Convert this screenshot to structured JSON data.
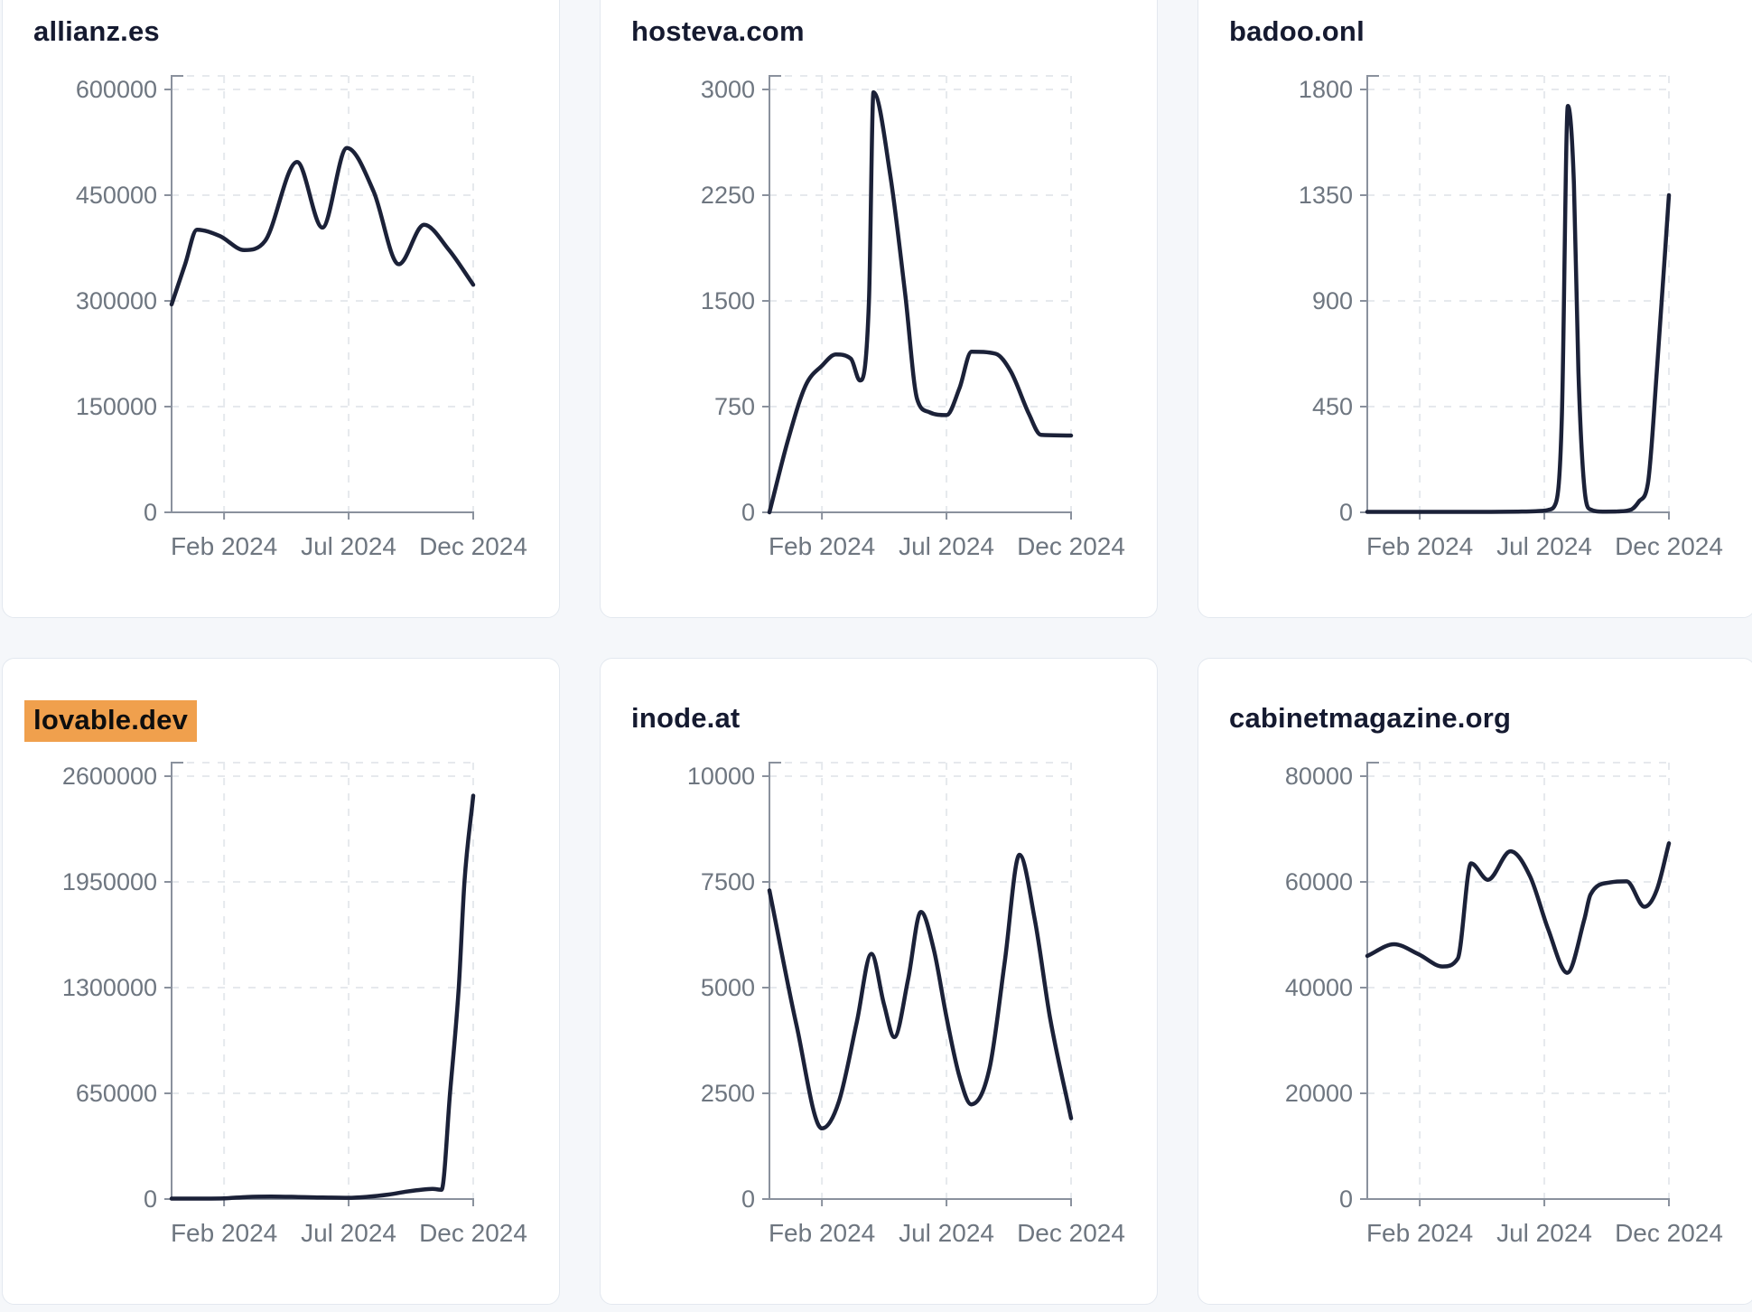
{
  "page": {
    "background_color": "#f5f7fa",
    "description": "Dashboard grid of six domain-traffic line charts"
  },
  "style": {
    "card_background": "#ffffff",
    "card_border_color": "#e3e8ef",
    "title_color": "#151a30",
    "highlight_background": "#f0a04d",
    "highlight_text_color": "#0e0e0e",
    "line_color": "#1b2138",
    "axis_color": "#8a919d",
    "tick_label_color": "#6e7680",
    "gridline_color": "#e6e9ed"
  },
  "chart_data": [
    {
      "id": "allianz-es",
      "type": "line",
      "title": "allianz.es",
      "title_highlighted": false,
      "legend_position": "none",
      "grid": "dashed",
      "x_tick_labels": [
        "Feb 2024",
        "Jul 2024",
        "Dec 2024"
      ],
      "x_tick_positions": [
        0.174,
        0.587,
        1.0
      ],
      "y_ticks": [
        0,
        150000,
        300000,
        450000,
        600000
      ],
      "ylim": [
        0,
        600000
      ],
      "points": [
        [
          0,
          295000
        ],
        [
          0.045,
          352000
        ],
        [
          0.084,
          401000
        ],
        [
          0.16,
          392000
        ],
        [
          0.241,
          372000
        ],
        [
          0.31,
          385000
        ],
        [
          0.416,
          497000
        ],
        [
          0.5,
          404000
        ],
        [
          0.581,
          517000
        ],
        [
          0.67,
          455000
        ],
        [
          0.753,
          352000
        ],
        [
          0.837,
          408000
        ],
        [
          0.92,
          372000
        ],
        [
          1.0,
          323000
        ]
      ]
    },
    {
      "id": "hosteva-com",
      "type": "line",
      "title": "hosteva.com",
      "title_highlighted": false,
      "legend_position": "none",
      "grid": "dashed",
      "x_tick_labels": [
        "Feb 2024",
        "Jul 2024",
        "Dec 2024"
      ],
      "x_tick_positions": [
        0.174,
        0.587,
        1.0
      ],
      "y_ticks": [
        0,
        750,
        1500,
        2250,
        3000
      ],
      "ylim": [
        0,
        3000
      ],
      "points": [
        [
          0,
          0
        ],
        [
          0.06,
          500
        ],
        [
          0.12,
          900
        ],
        [
          0.174,
          1040
        ],
        [
          0.22,
          1120
        ],
        [
          0.27,
          1090
        ],
        [
          0.3,
          935
        ],
        [
          0.33,
          1500
        ],
        [
          0.345,
          2980
        ],
        [
          0.4,
          2400
        ],
        [
          0.45,
          1550
        ],
        [
          0.49,
          800
        ],
        [
          0.53,
          710
        ],
        [
          0.587,
          690
        ],
        [
          0.63,
          880
        ],
        [
          0.67,
          1140
        ],
        [
          0.75,
          1125
        ],
        [
          0.8,
          1000
        ],
        [
          0.86,
          700
        ],
        [
          0.9,
          550
        ],
        [
          1.0,
          545
        ]
      ]
    },
    {
      "id": "badoo-onl",
      "type": "line",
      "title": "badoo.onl",
      "title_highlighted": false,
      "legend_position": "none",
      "grid": "dashed",
      "x_tick_labels": [
        "Feb 2024",
        "Jul 2024",
        "Dec 2024"
      ],
      "x_tick_positions": [
        0.174,
        0.587,
        1.0
      ],
      "y_ticks": [
        0,
        450,
        900,
        1350,
        1800
      ],
      "ylim": [
        0,
        1800
      ],
      "points": [
        [
          0,
          2
        ],
        [
          0.1,
          2
        ],
        [
          0.2,
          2
        ],
        [
          0.3,
          2
        ],
        [
          0.4,
          2
        ],
        [
          0.5,
          3
        ],
        [
          0.56,
          5
        ],
        [
          0.6,
          10
        ],
        [
          0.625,
          40
        ],
        [
          0.645,
          400
        ],
        [
          0.665,
          1730
        ],
        [
          0.685,
          1400
        ],
        [
          0.7,
          600
        ],
        [
          0.72,
          100
        ],
        [
          0.74,
          12
        ],
        [
          0.78,
          3
        ],
        [
          0.83,
          4
        ],
        [
          0.875,
          12
        ],
        [
          0.9,
          45
        ],
        [
          0.93,
          120
        ],
        [
          0.96,
          600
        ],
        [
          1.0,
          1350
        ]
      ]
    },
    {
      "id": "lovable-dev",
      "type": "line",
      "title": "lovable.dev",
      "title_highlighted": true,
      "legend_position": "none",
      "grid": "dashed",
      "x_tick_labels": [
        "Feb 2024",
        "Jul 2024",
        "Dec 2024"
      ],
      "x_tick_positions": [
        0.174,
        0.587,
        1.0
      ],
      "y_ticks": [
        0,
        650000,
        1300000,
        1950000,
        2600000
      ],
      "ylim": [
        0,
        2600000
      ],
      "points": [
        [
          0,
          2500
        ],
        [
          0.08,
          3000
        ],
        [
          0.174,
          4500
        ],
        [
          0.25,
          13000
        ],
        [
          0.33,
          15500
        ],
        [
          0.42,
          13000
        ],
        [
          0.5,
          9500
        ],
        [
          0.587,
          8000
        ],
        [
          0.65,
          14000
        ],
        [
          0.72,
          28000
        ],
        [
          0.78,
          46000
        ],
        [
          0.83,
          58000
        ],
        [
          0.865,
          62000
        ],
        [
          0.895,
          57000
        ],
        [
          0.923,
          650000
        ],
        [
          0.952,
          1300000
        ],
        [
          0.971,
          1950000
        ],
        [
          1.0,
          2480000
        ]
      ]
    },
    {
      "id": "inode-at",
      "type": "line",
      "title": "inode.at",
      "title_highlighted": false,
      "legend_position": "none",
      "grid": "dashed",
      "x_tick_labels": [
        "Feb 2024",
        "Jul 2024",
        "Dec 2024"
      ],
      "x_tick_positions": [
        0.174,
        0.587,
        1.0
      ],
      "y_ticks": [
        0,
        2500,
        5000,
        7500,
        10000
      ],
      "ylim": [
        0,
        10000
      ],
      "points": [
        [
          0,
          7300
        ],
        [
          0.09,
          4100
        ],
        [
          0.174,
          1670
        ],
        [
          0.23,
          2300
        ],
        [
          0.29,
          4200
        ],
        [
          0.338,
          5800
        ],
        [
          0.38,
          4600
        ],
        [
          0.414,
          3830
        ],
        [
          0.46,
          5200
        ],
        [
          0.502,
          6790
        ],
        [
          0.545,
          5900
        ],
        [
          0.587,
          4300
        ],
        [
          0.63,
          2900
        ],
        [
          0.669,
          2240
        ],
        [
          0.73,
          3100
        ],
        [
          0.78,
          5600
        ],
        [
          0.829,
          8140
        ],
        [
          0.88,
          6600
        ],
        [
          0.93,
          4300
        ],
        [
          1.0,
          1910
        ]
      ]
    },
    {
      "id": "cabinetmagazine-org",
      "type": "line",
      "title": "cabinetmagazine.org",
      "title_highlighted": false,
      "legend_position": "none",
      "grid": "dashed",
      "x_tick_labels": [
        "Feb 2024",
        "Jul 2024",
        "Dec 2024"
      ],
      "x_tick_positions": [
        0.174,
        0.587,
        1.0
      ],
      "y_ticks": [
        0,
        20000,
        40000,
        60000,
        80000
      ],
      "ylim": [
        0,
        80000
      ],
      "points": [
        [
          0,
          46000
        ],
        [
          0.089,
          48200
        ],
        [
          0.17,
          46300
        ],
        [
          0.25,
          44000
        ],
        [
          0.3,
          45500
        ],
        [
          0.344,
          63500
        ],
        [
          0.4,
          60400
        ],
        [
          0.475,
          65800
        ],
        [
          0.54,
          61000
        ],
        [
          0.6,
          51000
        ],
        [
          0.663,
          42800
        ],
        [
          0.72,
          53000
        ],
        [
          0.74,
          57600
        ],
        [
          0.805,
          59900
        ],
        [
          0.86,
          60100
        ],
        [
          0.919,
          55300
        ],
        [
          0.96,
          58500
        ],
        [
          1.0,
          67300
        ]
      ]
    }
  ]
}
